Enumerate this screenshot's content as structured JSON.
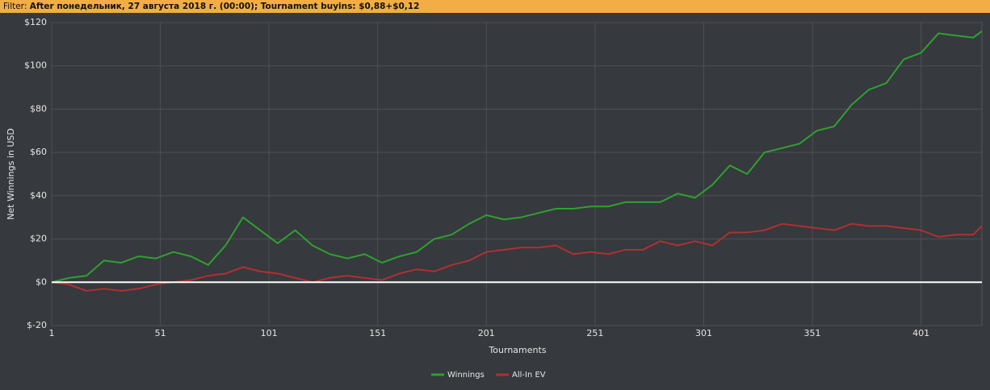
{
  "filter_label": "Filter:",
  "filter": "After понедельник, 27 августа 2018 г. (00:00); Tournament buyins: $0,88+$0,12",
  "chart_data": {
    "type": "line",
    "x_label": "Tournaments",
    "y_label": "Net Winnings in USD",
    "x": [
      1,
      9,
      17,
      25,
      33,
      41,
      49,
      57,
      65,
      73,
      81,
      89,
      97,
      105,
      113,
      121,
      129,
      137,
      145,
      153,
      161,
      169,
      177,
      185,
      193,
      201,
      209,
      217,
      225,
      233,
      241,
      249,
      257,
      265,
      273,
      281,
      289,
      297,
      305,
      313,
      321,
      329,
      337,
      345,
      353,
      361,
      369,
      377,
      385,
      393,
      401,
      409,
      417,
      425,
      429
    ],
    "series": [
      {
        "name": "Winnings",
        "color": "#2ea12e",
        "values": [
          0,
          2,
          3,
          10,
          9,
          12,
          11,
          14,
          12,
          8,
          17,
          30,
          24,
          18,
          24,
          17,
          13,
          11,
          13,
          9,
          12,
          14,
          20,
          22,
          27,
          31,
          29,
          30,
          32,
          34,
          34,
          35,
          35,
          37,
          37,
          37,
          41,
          39,
          45,
          54,
          50,
          60,
          62,
          64,
          70,
          72,
          82,
          89,
          92,
          103,
          106,
          115,
          114,
          113,
          116
        ]
      },
      {
        "name": "All-In EV",
        "color": "#b03030",
        "values": [
          0,
          -1,
          -4,
          -3,
          -4,
          -3,
          -1,
          0,
          1,
          3,
          4,
          7,
          5,
          4,
          2,
          0,
          2,
          3,
          2,
          1,
          4,
          6,
          5,
          8,
          10,
          14,
          15,
          16,
          16,
          17,
          13,
          14,
          13,
          15,
          15,
          19,
          17,
          19,
          17,
          23,
          23,
          24,
          27,
          26,
          25,
          24,
          27,
          26,
          26,
          25,
          24,
          21,
          22,
          22,
          26
        ]
      }
    ],
    "xlim": [
      1,
      429
    ],
    "xticks": [
      1,
      51,
      101,
      151,
      201,
      251,
      301,
      351,
      401
    ],
    "ylim": [
      -20,
      120
    ],
    "yticks": [
      {
        "value": -20,
        "label": "$-20"
      },
      {
        "value": 0,
        "label": "$0"
      },
      {
        "value": 20,
        "label": "$20"
      },
      {
        "value": 40,
        "label": "$40"
      },
      {
        "value": 60,
        "label": "$60"
      },
      {
        "value": 80,
        "label": "$80"
      },
      {
        "value": 100,
        "label": "$100"
      },
      {
        "value": 120,
        "label": "$120"
      }
    ],
    "grid": true,
    "legend": "bottom"
  }
}
